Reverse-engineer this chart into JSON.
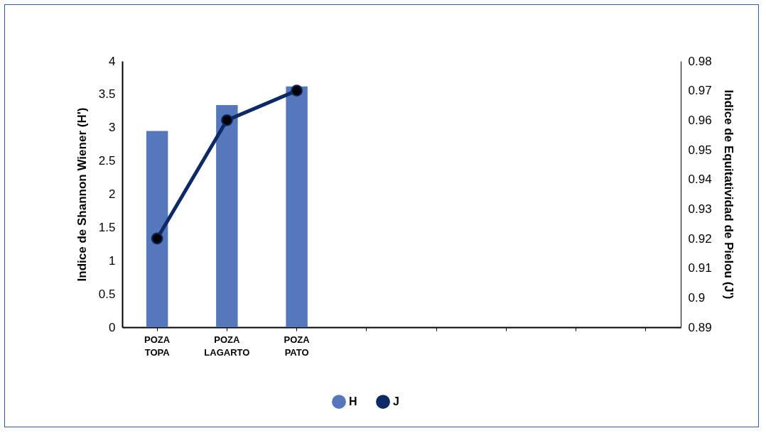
{
  "chart_data": {
    "type": "bar",
    "xlabel": null,
    "categories": [
      "POZA TOPA",
      "POZA LAGARTO",
      "POZA PATO",
      null,
      null,
      null,
      null,
      null
    ],
    "ylabel": "Indice de Shannon Wiener (H')",
    "y2label": "Indice de Equitatividad  de Pielou (J')",
    "ylim": [
      0,
      4
    ],
    "yticks": [
      0,
      0.5,
      1,
      1.5,
      2,
      2.5,
      3,
      3.5,
      4
    ],
    "y2lim": [
      0.89,
      0.98
    ],
    "y2ticks": [
      0.89,
      0.9,
      0.91,
      0.92,
      0.93,
      0.94,
      0.95,
      0.96,
      0.97,
      0.98
    ],
    "series": [
      {
        "name": "H",
        "color": "#5577bb",
        "values": [
          2.95,
          3.34,
          3.62,
          null,
          null,
          null,
          null,
          null
        ]
      },
      {
        "name": "J",
        "type": "line",
        "axis": "y2",
        "color": "#0d2a66",
        "marker": "circle",
        "values": [
          0.92,
          0.96,
          0.97,
          null,
          null,
          null,
          null,
          null
        ]
      }
    ],
    "legend": "bottom",
    "grid": false
  }
}
